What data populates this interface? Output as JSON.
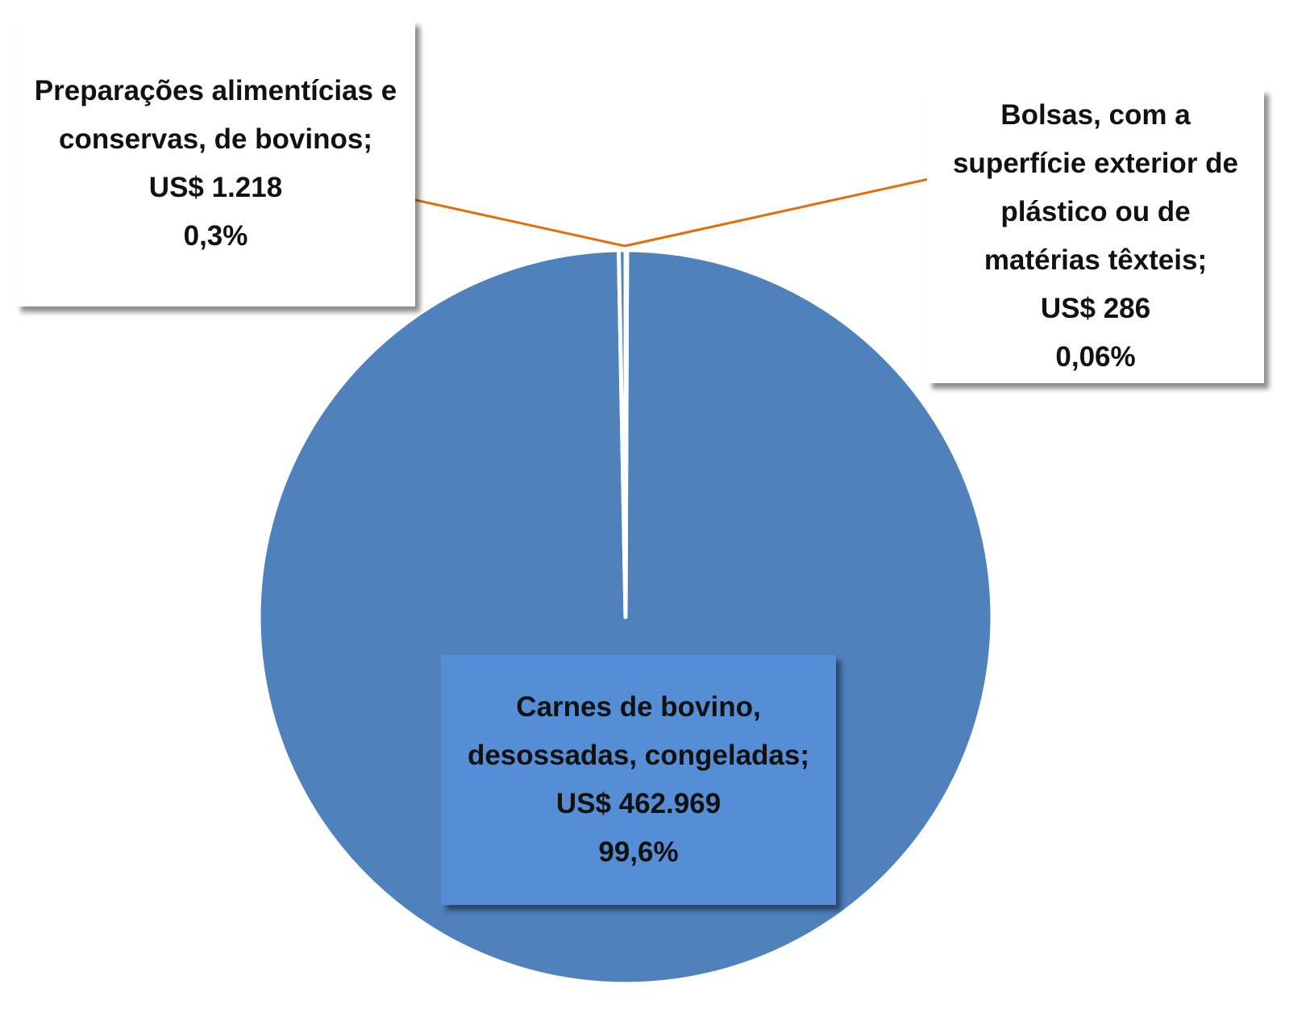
{
  "chart_data": {
    "type": "pie",
    "categories": [
      "Carnes de bovino, desossadas, congeladas;",
      "Preparações alimentícias e conservas, de bovinos;",
      "Bolsas, com a superfície exterior de plástico ou de matérias têxteis;"
    ],
    "values": [
      99.6,
      0.3,
      0.06
    ],
    "value_labels": [
      "99,6%",
      "0,3%",
      "0,06%"
    ],
    "amounts": [
      462969,
      1218,
      286
    ],
    "amount_labels": [
      "US$ 462.969",
      "US$ 1.218",
      "US$ 286"
    ],
    "color": "#4f81bd"
  }
}
